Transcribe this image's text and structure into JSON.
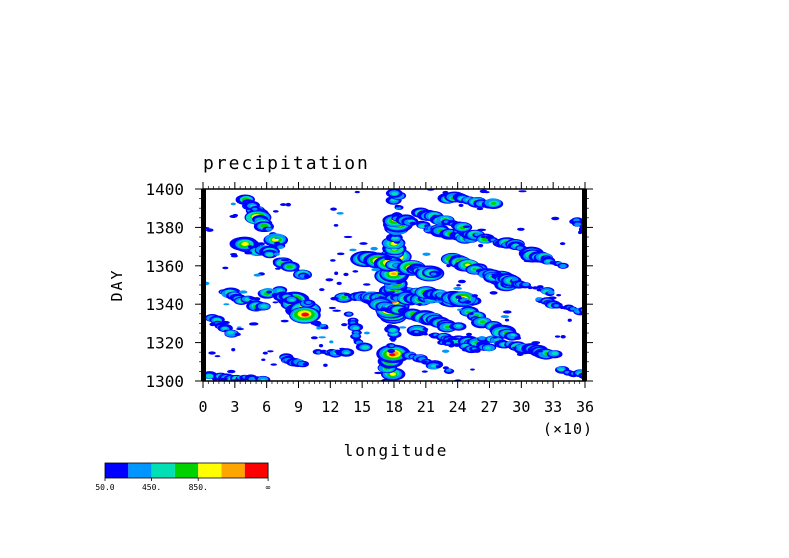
{
  "chart_data": {
    "type": "heatmap",
    "title": "precipitation",
    "xlabel": "longitude",
    "ylabel": "DAY",
    "x_multiplier_label": "(×10)",
    "xlim": [
      0,
      36
    ],
    "ylim": [
      1300,
      1400
    ],
    "x_ticks": [
      "0",
      "3",
      "6",
      "9",
      "12",
      "15",
      "18",
      "21",
      "24",
      "27",
      "30",
      "33",
      "36"
    ],
    "y_ticks": [
      "1300",
      "1320",
      "1340",
      "1360",
      "1380",
      "1400"
    ],
    "colorbar": {
      "colors": [
        "#0000ff",
        "#0096ff",
        "#00e0b4",
        "#00d200",
        "#ffff00",
        "#ffa500",
        "#ff0000"
      ],
      "tick_labels": [
        "50.0",
        "450.",
        "850.",
        "∞"
      ]
    },
    "features": [
      {
        "kind": "streak",
        "x": 17.6,
        "y": 1300,
        "x2": 18.2,
        "y2": 1398,
        "intensity": 6
      },
      {
        "kind": "streak",
        "x": 4.2,
        "y": 1394,
        "x2": 7.5,
        "y2": 1370,
        "intensity": 5
      },
      {
        "kind": "streak",
        "x": 3.5,
        "y": 1372,
        "x2": 6.5,
        "y2": 1366,
        "intensity": 5
      },
      {
        "kind": "streak",
        "x": 7.0,
        "y": 1363,
        "x2": 10.0,
        "y2": 1354,
        "intensity": 3
      },
      {
        "kind": "streak",
        "x": 2.0,
        "y": 1346,
        "x2": 6.0,
        "y2": 1338,
        "intensity": 4
      },
      {
        "kind": "streak",
        "x": 7.2,
        "y": 1347,
        "x2": 9.7,
        "y2": 1335,
        "intensity": 6
      },
      {
        "kind": "streak",
        "x": 6.0,
        "y": 1346,
        "x2": 10.0,
        "y2": 1340,
        "intensity": 3
      },
      {
        "kind": "streak",
        "x": 15.5,
        "y": 1364,
        "x2": 22.0,
        "y2": 1356,
        "intensity": 5
      },
      {
        "kind": "streak",
        "x": 13.0,
        "y": 1344,
        "x2": 25.5,
        "y2": 1342,
        "intensity": 4
      },
      {
        "kind": "streak",
        "x": 16.5,
        "y": 1340,
        "x2": 24.0,
        "y2": 1328,
        "intensity": 4
      },
      {
        "kind": "streak",
        "x": 19.0,
        "y": 1348,
        "x2": 25.0,
        "y2": 1342,
        "intensity": 5
      },
      {
        "kind": "streak",
        "x": 23.5,
        "y": 1364,
        "x2": 29.0,
        "y2": 1350,
        "intensity": 5
      },
      {
        "kind": "streak",
        "x": 25.5,
        "y": 1358,
        "x2": 33.0,
        "y2": 1346,
        "intensity": 3
      },
      {
        "kind": "streak",
        "x": 18.5,
        "y": 1384,
        "x2": 25.0,
        "y2": 1374,
        "intensity": 3
      },
      {
        "kind": "streak",
        "x": 24.0,
        "y": 1378,
        "x2": 28.5,
        "y2": 1372,
        "intensity": 4
      },
      {
        "kind": "streak",
        "x": 28.5,
        "y": 1372,
        "x2": 34.0,
        "y2": 1360,
        "intensity": 4
      },
      {
        "kind": "streak",
        "x": 20.0,
        "y": 1326,
        "x2": 27.0,
        "y2": 1318,
        "intensity": 3
      },
      {
        "kind": "streak",
        "x": 25.0,
        "y": 1336,
        "x2": 29.5,
        "y2": 1322,
        "intensity": 4
      },
      {
        "kind": "streak",
        "x": 26.5,
        "y": 1322,
        "x2": 33.0,
        "y2": 1314,
        "intensity": 3
      },
      {
        "kind": "streak",
        "x": 31.5,
        "y": 1342,
        "x2": 36.0,
        "y2": 1336,
        "intensity": 2
      },
      {
        "kind": "streak",
        "x": 1.0,
        "y": 1332,
        "x2": 3.0,
        "y2": 1324,
        "intensity": 2
      },
      {
        "kind": "streak",
        "x": 7.5,
        "y": 1312,
        "x2": 9.5,
        "y2": 1308,
        "intensity": 3
      },
      {
        "kind": "streak",
        "x": 0.5,
        "y": 1302,
        "x2": 5.5,
        "y2": 1301,
        "intensity": 2
      },
      {
        "kind": "streak",
        "x": 23.0,
        "y": 1396,
        "x2": 27.5,
        "y2": 1392,
        "intensity": 3
      },
      {
        "kind": "streak",
        "x": 34.0,
        "y": 1306,
        "x2": 36.0,
        "y2": 1302,
        "intensity": 3
      },
      {
        "kind": "streak",
        "x": 14.0,
        "y": 1334,
        "x2": 15.0,
        "y2": 1318,
        "intensity": 2
      },
      {
        "kind": "streak",
        "x": 11.0,
        "y": 1316,
        "x2": 13.5,
        "y2": 1314,
        "intensity": 2
      },
      {
        "kind": "streak",
        "x": 20.5,
        "y": 1388,
        "x2": 24.5,
        "y2": 1380,
        "intensity": 3
      },
      {
        "kind": "streak",
        "x": 22.5,
        "y": 1320,
        "x2": 26.0,
        "y2": 1316,
        "intensity": 2
      },
      {
        "kind": "streak",
        "x": 19.5,
        "y": 1314,
        "x2": 23.0,
        "y2": 1306,
        "intensity": 2
      },
      {
        "kind": "streak",
        "x": 35.0,
        "y": 1384,
        "x2": 36.0,
        "y2": 1380,
        "intensity": 2
      },
      {
        "kind": "streak",
        "x": 10.5,
        "y": 1330,
        "x2": 11.5,
        "y2": 1328,
        "intensity": 1
      },
      {
        "kind": "streak",
        "x": 4.0,
        "y": 1392,
        "x2": 5.0,
        "y2": 1390,
        "intensity": 2
      }
    ]
  }
}
